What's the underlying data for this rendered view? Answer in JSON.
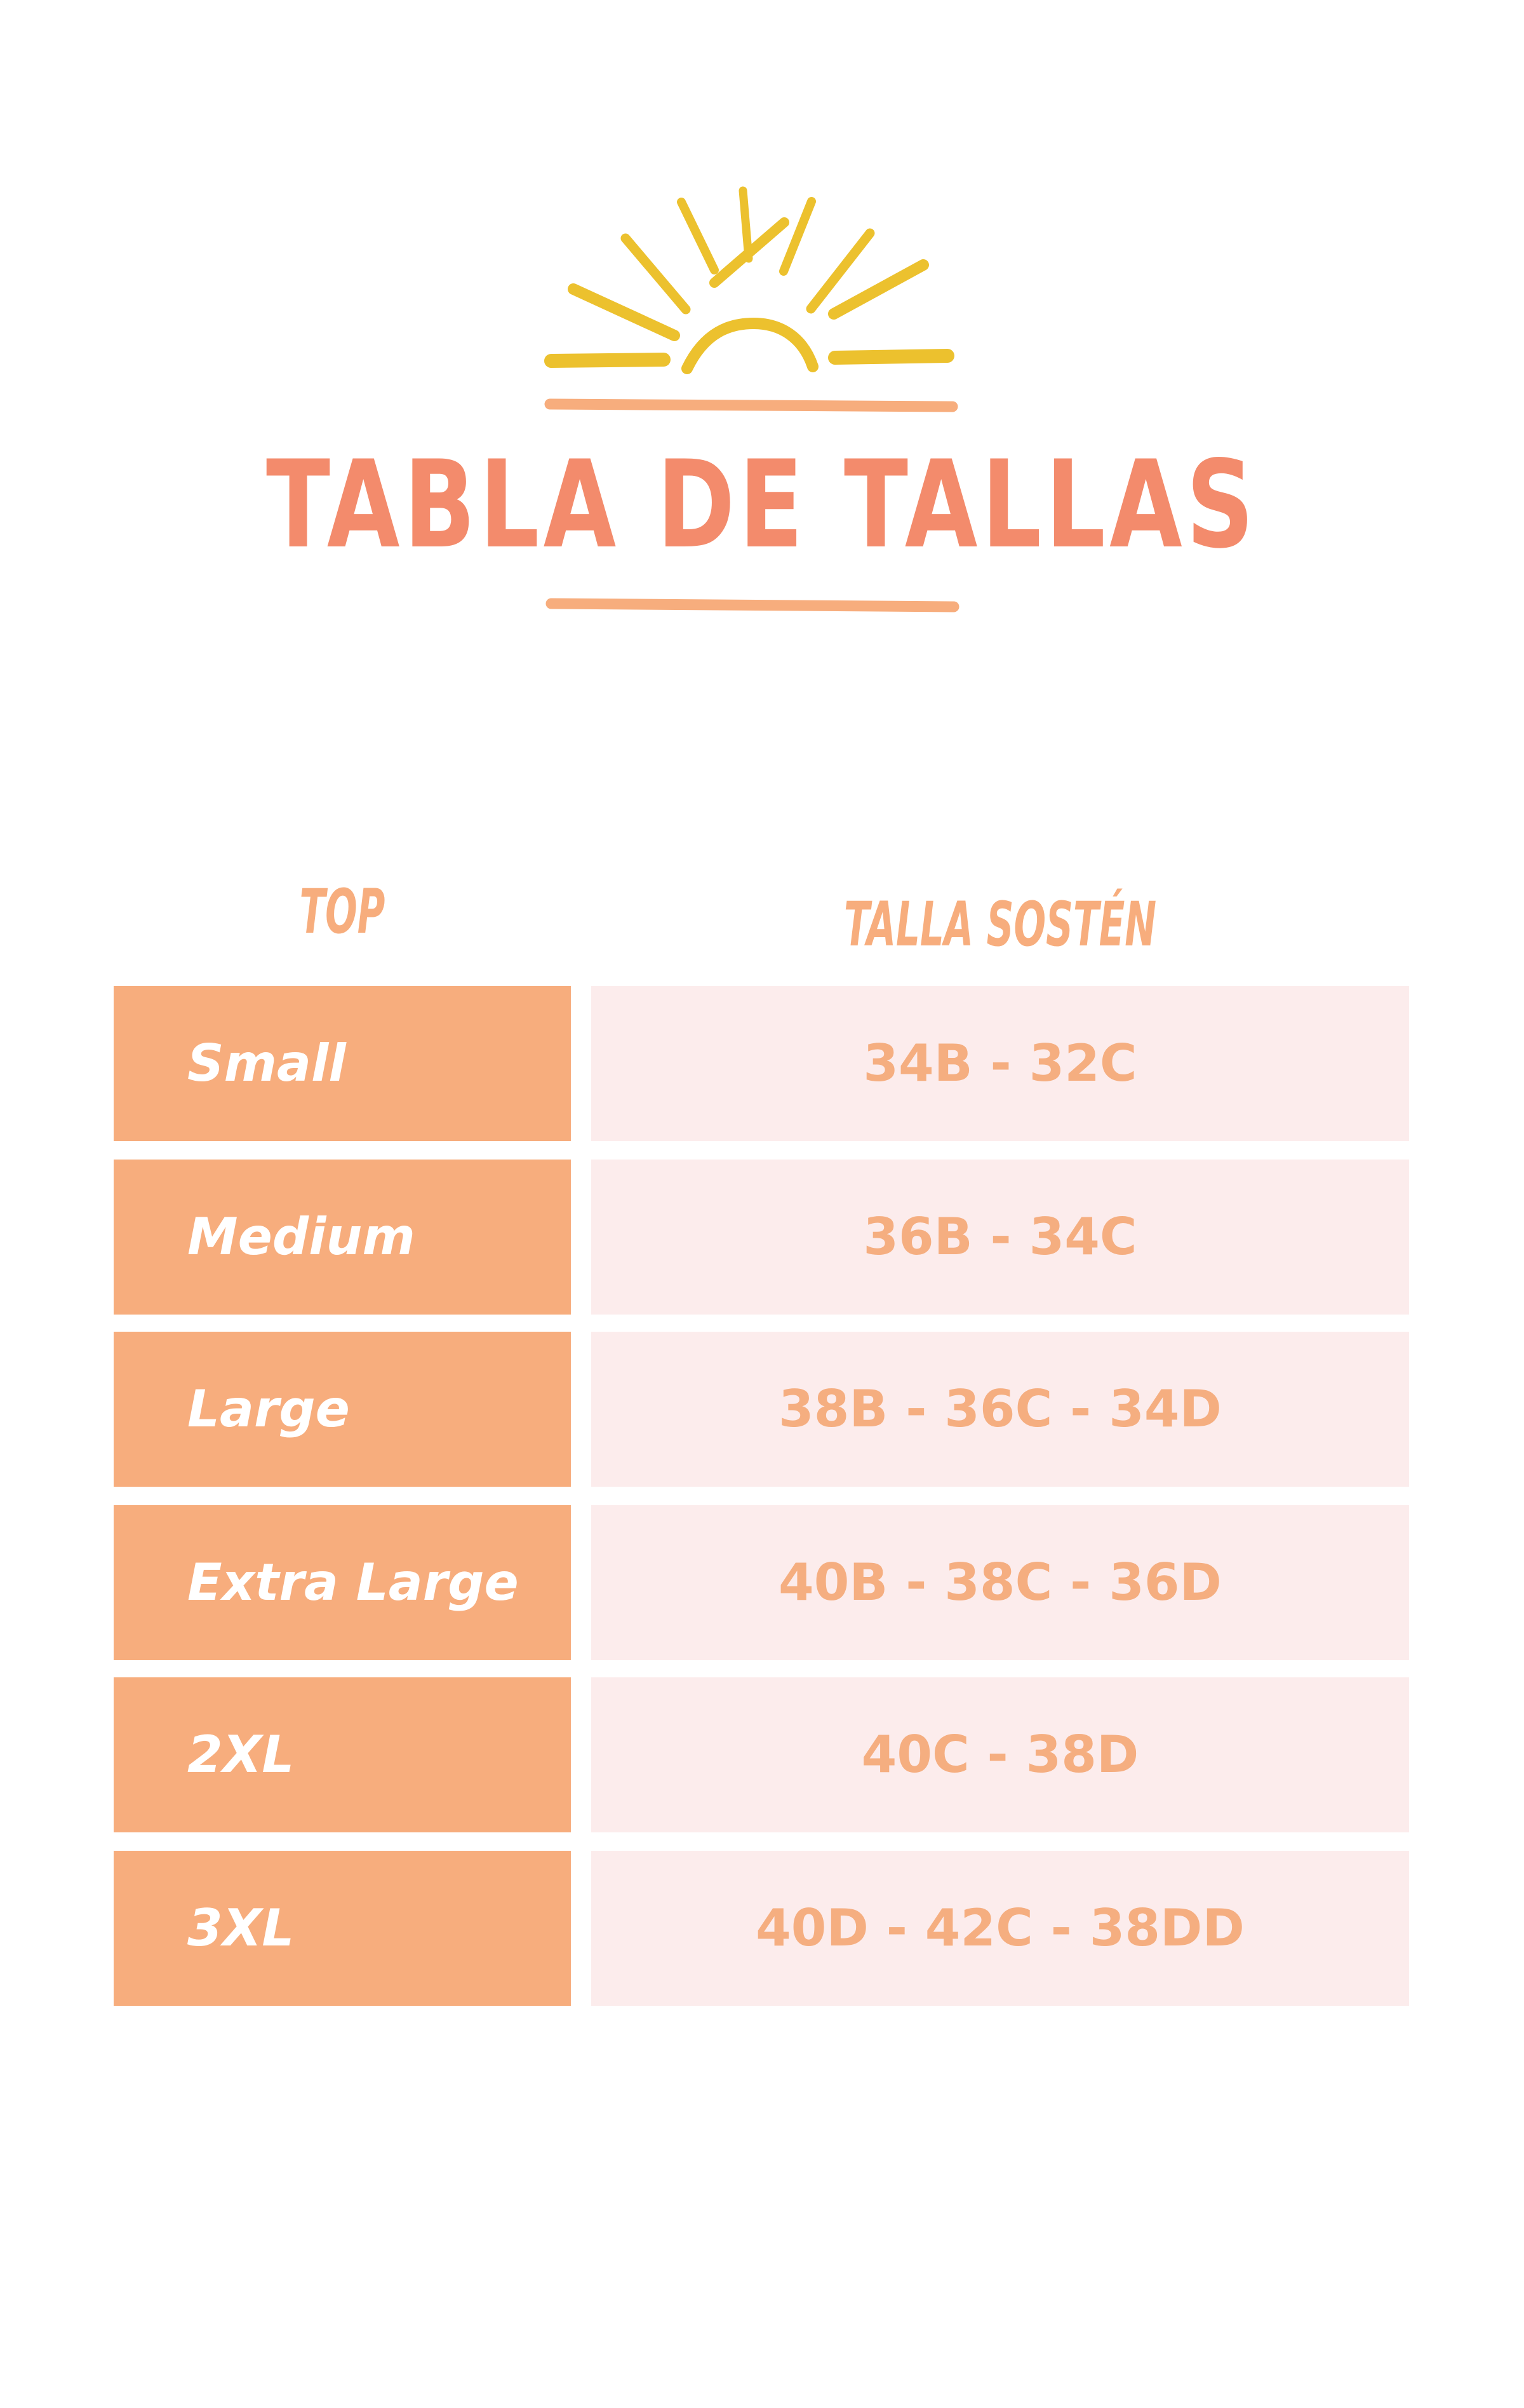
{
  "title": "TABLA DE TALLAS",
  "colors": {
    "title": "#F38B6C",
    "sun": "#ECC12E",
    "accent": "#F7AD7D",
    "cell_light": "#FCECEC"
  },
  "icons": {
    "logo": "sun-rising-icon"
  },
  "table": {
    "headers": [
      "TOP",
      "TALLA SOSTÉN"
    ],
    "rows": [
      {
        "top": "Small",
        "bra": "34B - 32C"
      },
      {
        "top": "Medium",
        "bra": "36B - 34C"
      },
      {
        "top": "Large",
        "bra": "38B - 36C - 34D"
      },
      {
        "top": "Extra Large",
        "bra": "40B - 38C - 36D"
      },
      {
        "top": "2XL",
        "bra": "40C - 38D"
      },
      {
        "top": "3XL",
        "bra": "40D - 42C - 38DD"
      }
    ]
  }
}
